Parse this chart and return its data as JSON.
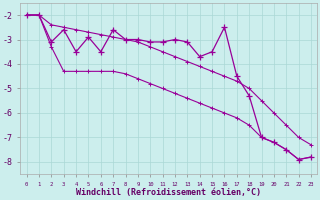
{
  "xlabel": "Windchill (Refroidissement éolien,°C)",
  "bg_color": "#cceeed",
  "grid_color": "#aad8d5",
  "line_color": "#990099",
  "x_hours": [
    0,
    1,
    2,
    3,
    4,
    5,
    6,
    7,
    8,
    9,
    10,
    11,
    12,
    13,
    14,
    15,
    16,
    17,
    18,
    19,
    20,
    21,
    22,
    23
  ],
  "y_main": [
    -2.0,
    -2.0,
    -3.1,
    -2.6,
    -3.5,
    -2.9,
    -3.5,
    -2.6,
    -3.0,
    -3.0,
    -3.1,
    -3.1,
    -3.0,
    -3.1,
    -3.7,
    -3.5,
    -2.5,
    -4.5,
    -5.3,
    -7.0,
    -7.2,
    -7.5,
    -7.9,
    -7.8
  ],
  "y_upper": [
    -2.0,
    -2.0,
    -2.4,
    -2.5,
    -2.6,
    -2.7,
    -2.8,
    -2.9,
    -3.0,
    -3.1,
    -3.3,
    -3.5,
    -3.7,
    -3.9,
    -4.1,
    -4.3,
    -4.5,
    -4.7,
    -5.0,
    -5.5,
    -6.0,
    -6.5,
    -7.0,
    -7.3
  ],
  "y_lower": [
    -2.0,
    -2.0,
    -3.3,
    -4.3,
    -4.3,
    -4.3,
    -4.3,
    -4.3,
    -4.4,
    -4.6,
    -4.8,
    -5.0,
    -5.2,
    -5.4,
    -5.6,
    -5.8,
    -6.0,
    -6.2,
    -6.5,
    -7.0,
    -7.2,
    -7.5,
    -7.9,
    -7.8
  ],
  "ylim": [
    -8.5,
    -1.5
  ],
  "xlim": [
    -0.5,
    23.5
  ],
  "yticks": [
    -2,
    -3,
    -4,
    -5,
    -6,
    -7,
    -8
  ],
  "xtick_labels": [
    "0",
    "1",
    "2",
    "3",
    "4",
    "5",
    "6",
    "7",
    "8",
    "9",
    "10",
    "11",
    "12",
    "13",
    "14",
    "15",
    "16",
    "17",
    "18",
    "19",
    "20",
    "21",
    "22",
    "23"
  ]
}
